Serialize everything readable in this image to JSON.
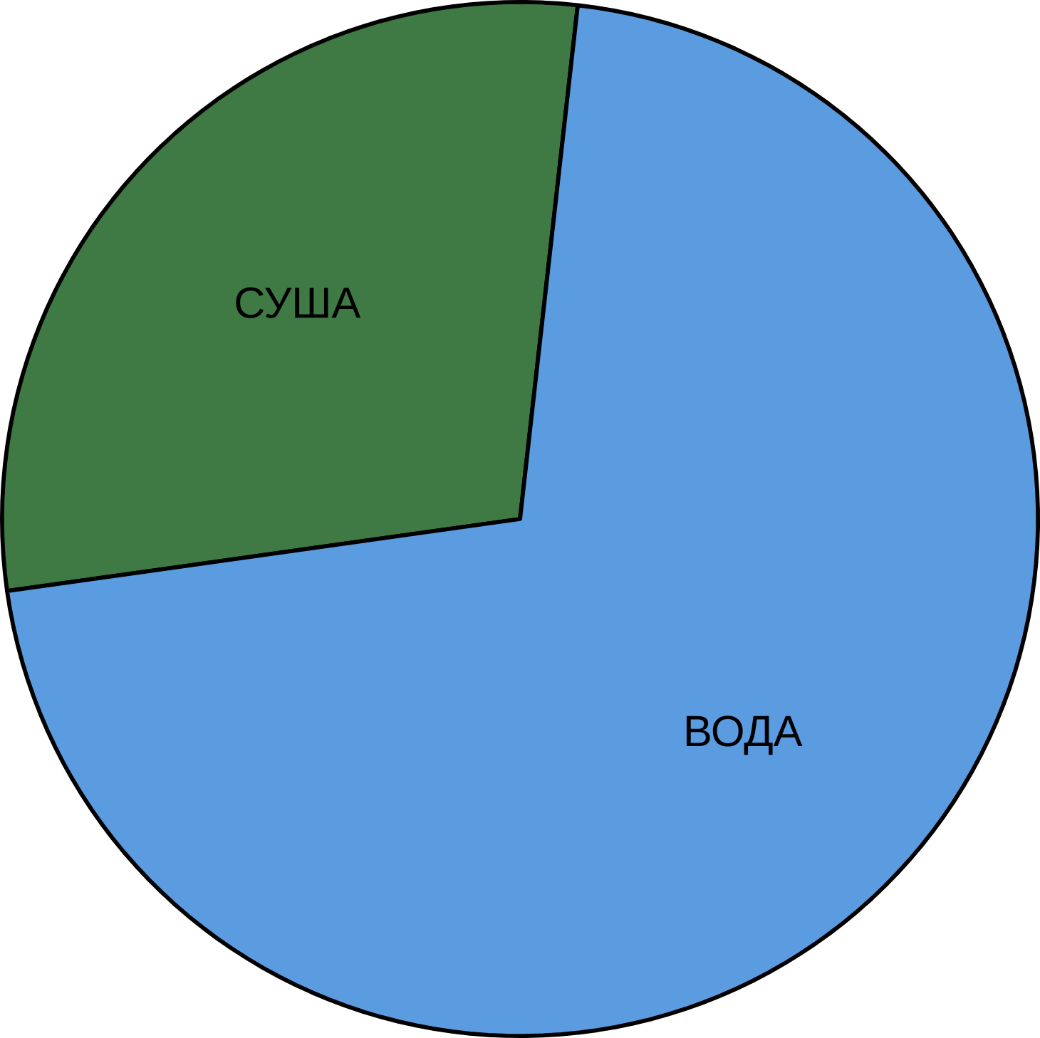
{
  "chart_data": {
    "type": "pie",
    "categories": [
      "СУША",
      "ВОДА"
    ],
    "values": [
      29,
      71
    ],
    "colors": [
      "#3f7a45",
      "#5b9be0"
    ]
  }
}
